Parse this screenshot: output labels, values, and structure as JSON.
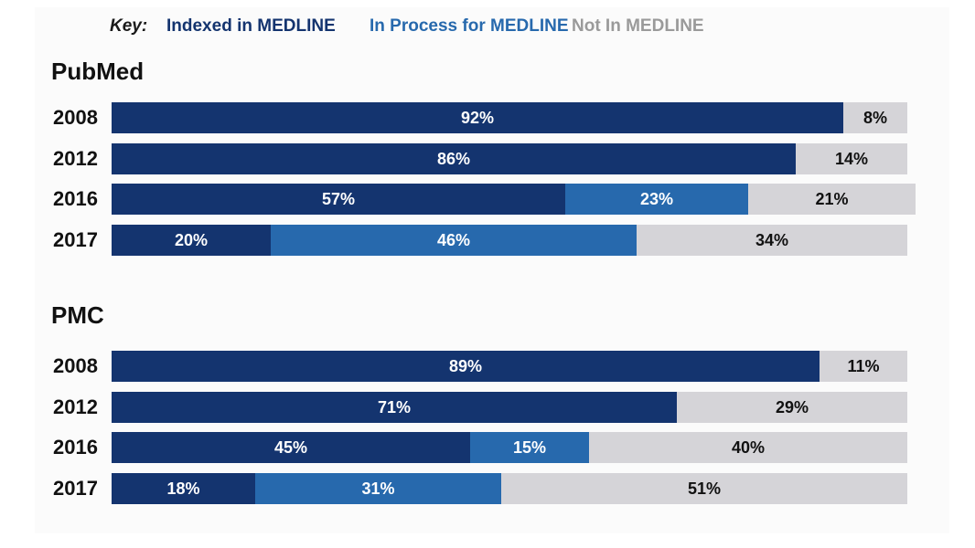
{
  "key": {
    "title": "Key:",
    "indexed": "Indexed in MEDLINE",
    "in_process": "In Process for MEDLINE",
    "not_in": "Not In MEDLINE"
  },
  "colors": {
    "indexed": "#14346f",
    "in_process": "#2769ad",
    "not_in": "#d5d4d8",
    "label_dark": "#111111",
    "label_light": "#ffffff",
    "key_not_in": "#9a9a9a"
  },
  "chart_data": [
    {
      "type": "bar",
      "orientation": "horizontal",
      "stacked": true,
      "title": "PubMed",
      "categories": [
        "2008",
        "2012",
        "2016",
        "2017"
      ],
      "series": [
        {
          "name": "Indexed in MEDLINE",
          "values": [
            92,
            86,
            57,
            20
          ],
          "labels": [
            "92%",
            "86%",
            "57%",
            "20%"
          ]
        },
        {
          "name": "In Process for MEDLINE",
          "values": [
            0,
            0,
            23,
            46
          ],
          "labels": [
            "",
            "",
            "23%",
            "46%"
          ]
        },
        {
          "name": "Not In MEDLINE",
          "values": [
            8,
            14,
            21,
            34
          ],
          "labels": [
            "8%",
            "14%",
            "21%",
            "34%"
          ]
        }
      ],
      "xlim": [
        0,
        100
      ],
      "grid": false,
      "legend": "top"
    },
    {
      "type": "bar",
      "orientation": "horizontal",
      "stacked": true,
      "title": "PMC",
      "categories": [
        "2008",
        "2012",
        "2016",
        "2017"
      ],
      "series": [
        {
          "name": "Indexed in MEDLINE",
          "values": [
            89,
            71,
            45,
            18
          ],
          "labels": [
            "89%",
            "71%",
            "45%",
            "18%"
          ]
        },
        {
          "name": "In Process for MEDLINE",
          "values": [
            0,
            0,
            15,
            31
          ],
          "labels": [
            "",
            "",
            "15%",
            "31%"
          ]
        },
        {
          "name": "Not In MEDLINE",
          "values": [
            11,
            29,
            40,
            51
          ],
          "labels": [
            "11%",
            "29%",
            "40%",
            "51%"
          ]
        }
      ],
      "xlim": [
        0,
        100
      ],
      "grid": false,
      "legend": "top"
    }
  ]
}
